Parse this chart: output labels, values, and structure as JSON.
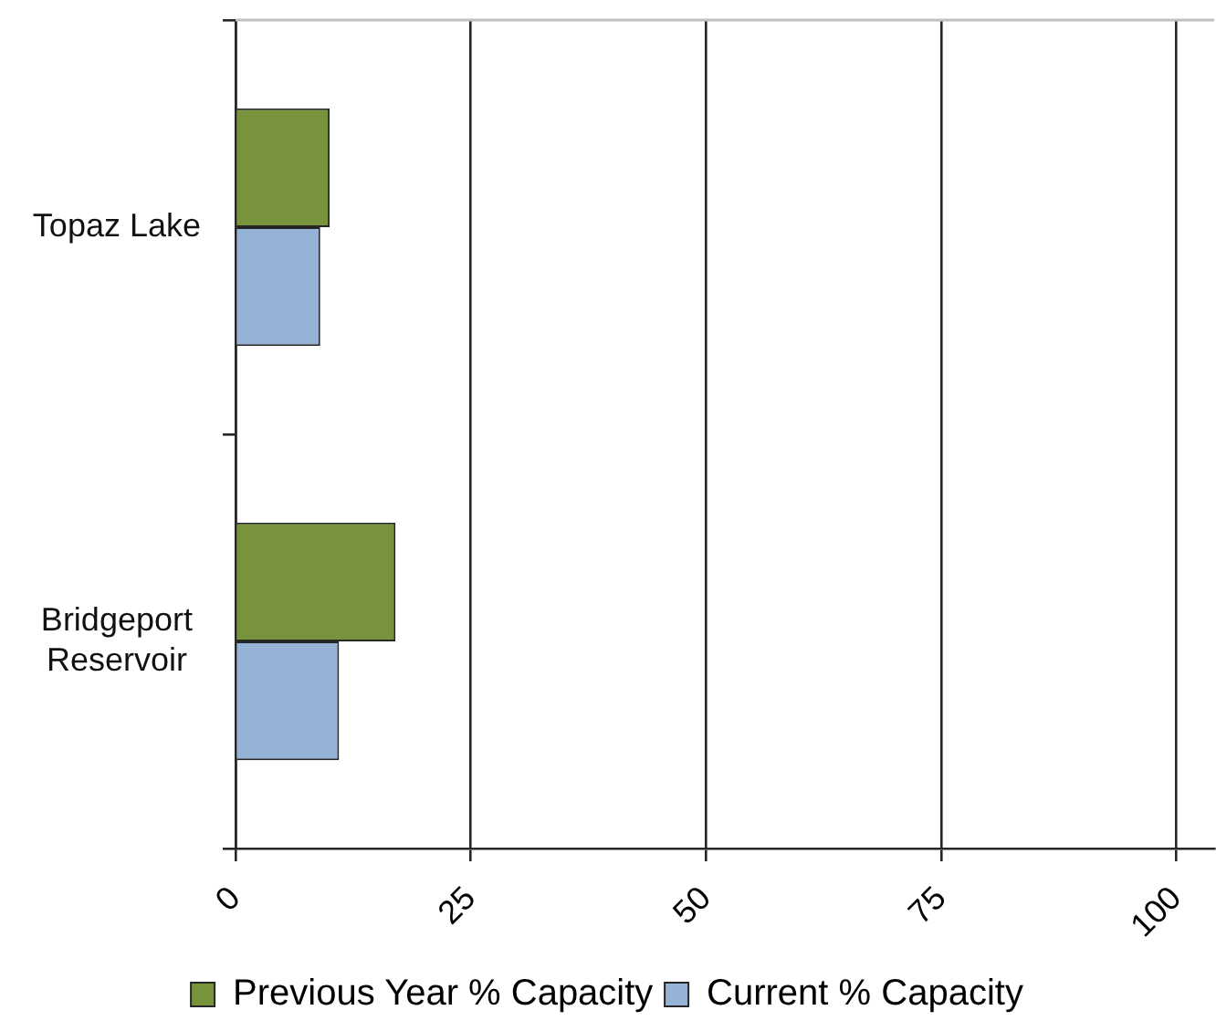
{
  "chart_data": {
    "type": "bar",
    "orientation": "horizontal",
    "categories": [
      "Topaz Lake",
      "Bridgeport Reservoir"
    ],
    "series": [
      {
        "name": "Previous Year % Capacity",
        "color": "#77933c",
        "values": [
          10,
          17
        ]
      },
      {
        "name": "Current % Capacity",
        "color": "#95b3d7",
        "values": [
          9,
          11
        ]
      }
    ],
    "xlim": [
      0,
      104
    ],
    "xticks": [
      0,
      25,
      50,
      75,
      100
    ],
    "grid": "x",
    "legend": "bottom"
  }
}
